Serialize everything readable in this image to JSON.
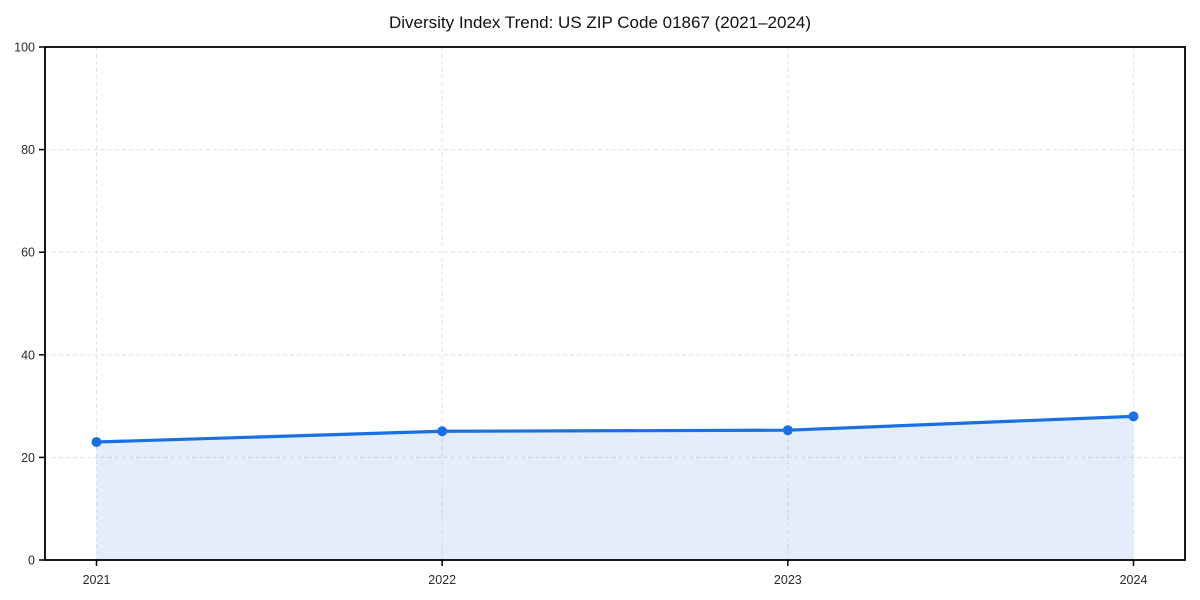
{
  "title": "Diversity Index Trend: US ZIP Code 01867 (2021–2024)",
  "colors": {
    "line": "#1a6fe1",
    "grid": "#e5e5e5",
    "axis": "#000000",
    "tick_text": "#2b2b2b",
    "background": "#ffffff"
  },
  "chart_data": {
    "type": "area",
    "title": "Diversity Index Trend: US ZIP Code 01867 (2021–2024)",
    "x": [
      2021,
      2022,
      2023,
      2024
    ],
    "x_tick_labels": [
      "2021",
      "2022",
      "2023",
      "2024"
    ],
    "series": [
      {
        "name": "Diversity Index",
        "values": [
          23.0,
          25.1,
          25.3,
          28.0
        ]
      }
    ],
    "xlabel": "",
    "ylabel": "",
    "ylim": [
      0,
      100
    ],
    "yticks": [
      0,
      20,
      40,
      60,
      80,
      100
    ],
    "y_tick_labels": [
      "0",
      "20",
      "40",
      "60",
      "80",
      "100"
    ],
    "grid": true,
    "grid_style": "dashed",
    "legend": "none",
    "marker": "circle",
    "fill_opacity": 0.12
  }
}
